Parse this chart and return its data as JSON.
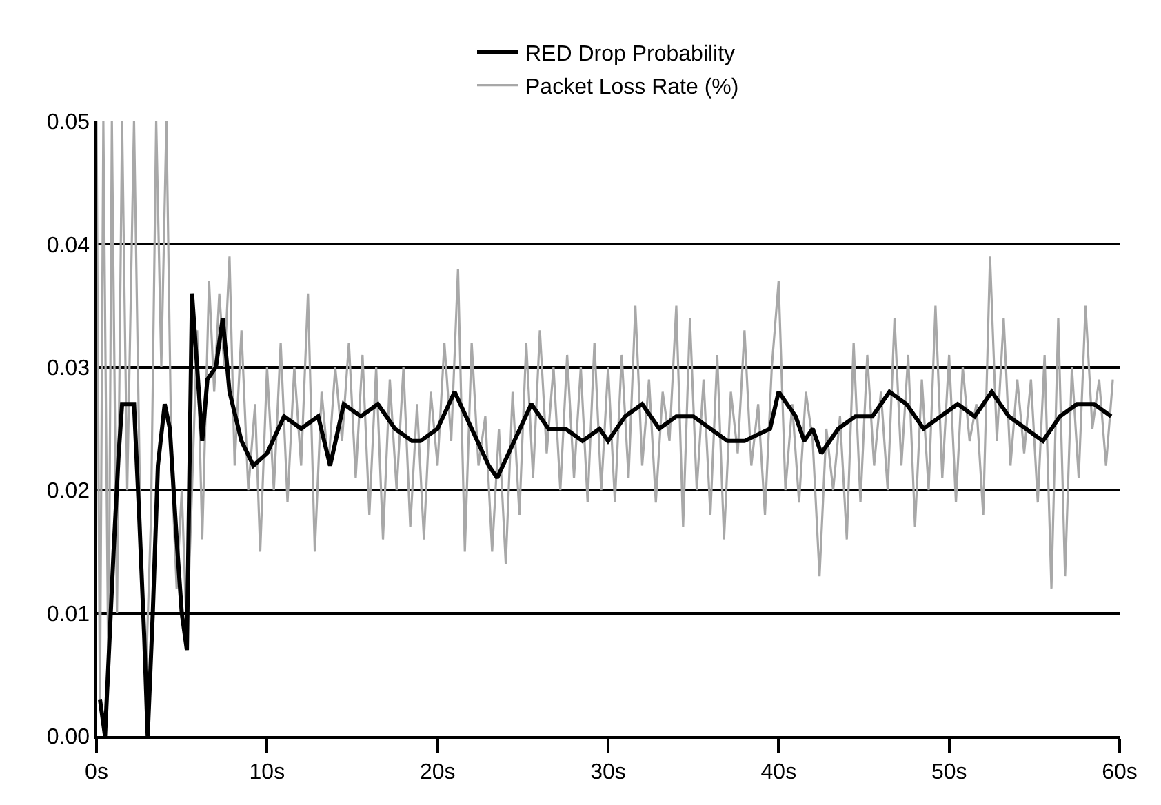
{
  "chart_data": {
    "type": "line",
    "xlim": [
      0,
      60
    ],
    "ylim": [
      0,
      0.05
    ],
    "xticks": [
      {
        "value": 0,
        "label": "0s"
      },
      {
        "value": 10,
        "label": "10s"
      },
      {
        "value": 20,
        "label": "20s"
      },
      {
        "value": 30,
        "label": "30s"
      },
      {
        "value": 40,
        "label": "40s"
      },
      {
        "value": 50,
        "label": "50s"
      },
      {
        "value": 60,
        "label": "60s"
      }
    ],
    "yticks": [
      {
        "value": 0,
        "label": "0.00"
      },
      {
        "value": 0.01,
        "label": "0.01"
      },
      {
        "value": 0.02,
        "label": "0.02"
      },
      {
        "value": 0.03,
        "label": "0.03"
      },
      {
        "value": 0.04,
        "label": "0.04"
      },
      {
        "value": 0.05,
        "label": "0.05"
      }
    ],
    "grid": "y",
    "legend": "top",
    "marker": "none",
    "line_style": "solid",
    "series": [
      {
        "name": "Packet Loss Rate (%)",
        "color": "#a8a8a8",
        "x": [
          0.0,
          0.2,
          0.4,
          0.7,
          0.9,
          1.2,
          1.5,
          1.8,
          2.2,
          2.6,
          2.9,
          3.2,
          3.5,
          3.8,
          4.1,
          4.4,
          4.7,
          5.0,
          5.3,
          5.6,
          5.9,
          6.2,
          6.6,
          6.9,
          7.2,
          7.5,
          7.8,
          8.1,
          8.5,
          8.9,
          9.3,
          9.6,
          10.0,
          10.4,
          10.8,
          11.2,
          11.6,
          12.0,
          12.4,
          12.8,
          13.2,
          13.6,
          14.0,
          14.4,
          14.8,
          15.2,
          15.6,
          16.0,
          16.4,
          16.8,
          17.2,
          17.6,
          18.0,
          18.4,
          18.8,
          19.2,
          19.6,
          20.0,
          20.4,
          20.8,
          21.2,
          21.6,
          22.0,
          22.4,
          22.8,
          23.2,
          23.6,
          24.0,
          24.4,
          24.8,
          25.2,
          25.6,
          26.0,
          26.4,
          26.8,
          27.2,
          27.6,
          28.0,
          28.4,
          28.8,
          29.2,
          29.6,
          30.0,
          30.4,
          30.8,
          31.2,
          31.6,
          32.0,
          32.4,
          32.8,
          33.2,
          33.6,
          34.0,
          34.4,
          34.8,
          35.2,
          35.6,
          36.0,
          36.4,
          36.8,
          37.2,
          37.6,
          38.0,
          38.4,
          38.8,
          39.2,
          39.6,
          40.0,
          40.4,
          40.8,
          41.2,
          41.6,
          42.0,
          42.4,
          42.8,
          43.2,
          43.6,
          44.0,
          44.4,
          44.8,
          45.2,
          45.6,
          46.0,
          46.4,
          46.8,
          47.2,
          47.6,
          48.0,
          48.4,
          48.8,
          49.2,
          49.6,
          50.0,
          50.4,
          50.8,
          51.2,
          51.6,
          52.0,
          52.4,
          52.8,
          53.2,
          53.6,
          54.0,
          54.4,
          54.8,
          55.2,
          55.6,
          56.0,
          56.4,
          56.8,
          57.2,
          57.6,
          58.0,
          58.4,
          58.8,
          59.2,
          59.6
        ],
        "values": [
          0.05,
          0.002,
          0.05,
          0.004,
          0.05,
          0.01,
          0.05,
          0.02,
          0.05,
          0.015,
          0.005,
          0.018,
          0.05,
          0.03,
          0.05,
          0.022,
          0.012,
          0.02,
          0.008,
          0.02,
          0.033,
          0.016,
          0.037,
          0.028,
          0.036,
          0.03,
          0.039,
          0.022,
          0.033,
          0.02,
          0.027,
          0.015,
          0.03,
          0.02,
          0.032,
          0.019,
          0.03,
          0.022,
          0.036,
          0.015,
          0.028,
          0.022,
          0.03,
          0.024,
          0.032,
          0.021,
          0.031,
          0.018,
          0.03,
          0.016,
          0.029,
          0.02,
          0.03,
          0.017,
          0.027,
          0.016,
          0.028,
          0.022,
          0.032,
          0.024,
          0.038,
          0.015,
          0.032,
          0.022,
          0.026,
          0.015,
          0.025,
          0.014,
          0.028,
          0.018,
          0.032,
          0.021,
          0.033,
          0.023,
          0.03,
          0.02,
          0.031,
          0.021,
          0.03,
          0.019,
          0.032,
          0.02,
          0.03,
          0.019,
          0.031,
          0.021,
          0.035,
          0.022,
          0.029,
          0.019,
          0.028,
          0.024,
          0.035,
          0.017,
          0.034,
          0.02,
          0.029,
          0.018,
          0.031,
          0.016,
          0.028,
          0.023,
          0.033,
          0.022,
          0.027,
          0.018,
          0.03,
          0.037,
          0.02,
          0.027,
          0.019,
          0.028,
          0.024,
          0.013,
          0.025,
          0.02,
          0.026,
          0.016,
          0.032,
          0.019,
          0.031,
          0.022,
          0.028,
          0.02,
          0.034,
          0.022,
          0.031,
          0.017,
          0.029,
          0.02,
          0.035,
          0.021,
          0.031,
          0.019,
          0.03,
          0.024,
          0.027,
          0.018,
          0.039,
          0.024,
          0.034,
          0.022,
          0.029,
          0.023,
          0.029,
          0.019,
          0.031,
          0.012,
          0.034,
          0.013,
          0.03,
          0.021,
          0.035,
          0.025,
          0.029,
          0.022,
          0.029
        ]
      },
      {
        "name": "RED Drop Probability",
        "color": "#000000",
        "x": [
          0.2,
          0.5,
          0.7,
          1.0,
          1.3,
          1.5,
          2.2,
          2.5,
          2.8,
          3.0,
          3.3,
          3.6,
          4.0,
          4.3,
          4.7,
          5.0,
          5.3,
          5.6,
          5.9,
          6.2,
          6.5,
          7.0,
          7.4,
          7.8,
          8.5,
          9.2,
          10,
          11,
          12,
          13,
          13.7,
          14.5,
          15.5,
          16.5,
          17.5,
          18.5,
          19,
          20,
          21,
          22,
          23,
          23.5,
          24.5,
          25.5,
          26.5,
          27.5,
          28.5,
          29.5,
          30,
          31,
          32,
          33,
          34,
          35,
          36,
          37,
          38,
          39.5,
          40,
          41,
          41.5,
          42,
          42.5,
          43.5,
          44.5,
          45.5,
          46.5,
          47.5,
          48.5,
          49.5,
          50.5,
          51.5,
          52.5,
          53.5,
          54.5,
          55.5,
          56.5,
          57.5,
          58.5,
          59.5
        ],
        "values": [
          0.003,
          0.0,
          0.006,
          0.015,
          0.023,
          0.027,
          0.027,
          0.018,
          0.008,
          0.0,
          0.01,
          0.022,
          0.027,
          0.025,
          0.016,
          0.01,
          0.007,
          0.036,
          0.03,
          0.024,
          0.029,
          0.03,
          0.034,
          0.028,
          0.024,
          0.022,
          0.023,
          0.026,
          0.025,
          0.026,
          0.022,
          0.027,
          0.026,
          0.027,
          0.025,
          0.024,
          0.024,
          0.025,
          0.028,
          0.025,
          0.022,
          0.021,
          0.024,
          0.027,
          0.025,
          0.025,
          0.024,
          0.025,
          0.024,
          0.026,
          0.027,
          0.025,
          0.026,
          0.026,
          0.025,
          0.024,
          0.024,
          0.025,
          0.028,
          0.026,
          0.024,
          0.025,
          0.023,
          0.025,
          0.026,
          0.026,
          0.028,
          0.027,
          0.025,
          0.026,
          0.027,
          0.026,
          0.028,
          0.026,
          0.025,
          0.024,
          0.026,
          0.027,
          0.027,
          0.026
        ]
      }
    ]
  }
}
